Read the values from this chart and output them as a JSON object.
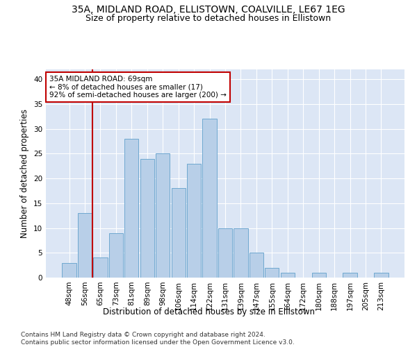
{
  "title1": "35A, MIDLAND ROAD, ELLISTOWN, COALVILLE, LE67 1EG",
  "title2": "Size of property relative to detached houses in Ellistown",
  "xlabel": "Distribution of detached houses by size in Ellistown",
  "ylabel": "Number of detached properties",
  "categories": [
    "48sqm",
    "56sqm",
    "65sqm",
    "73sqm",
    "81sqm",
    "89sqm",
    "98sqm",
    "106sqm",
    "114sqm",
    "122sqm",
    "131sqm",
    "139sqm",
    "147sqm",
    "155sqm",
    "164sqm",
    "172sqm",
    "180sqm",
    "188sqm",
    "197sqm",
    "205sqm",
    "213sqm"
  ],
  "values": [
    3,
    13,
    4,
    9,
    28,
    24,
    25,
    18,
    23,
    32,
    10,
    10,
    5,
    2,
    1,
    0,
    1,
    0,
    1,
    0,
    1
  ],
  "bar_color": "#b8cfe8",
  "bar_edge_color": "#6fa8d0",
  "vline_x": 1.5,
  "vline_color": "#c00000",
  "annotation_text": "35A MIDLAND ROAD: 69sqm\n← 8% of detached houses are smaller (17)\n92% of semi-detached houses are larger (200) →",
  "annotation_box_color": "#ffffff",
  "annotation_box_edge_color": "#c00000",
  "ylim": [
    0,
    42
  ],
  "yticks": [
    0,
    5,
    10,
    15,
    20,
    25,
    30,
    35,
    40
  ],
  "bg_color": "#dce6f5",
  "footer": "Contains HM Land Registry data © Crown copyright and database right 2024.\nContains public sector information licensed under the Open Government Licence v3.0.",
  "title1_fontsize": 10,
  "title2_fontsize": 9,
  "xlabel_fontsize": 8.5,
  "ylabel_fontsize": 8.5,
  "tick_fontsize": 7.5,
  "footer_fontsize": 6.5,
  "annot_fontsize": 7.5
}
